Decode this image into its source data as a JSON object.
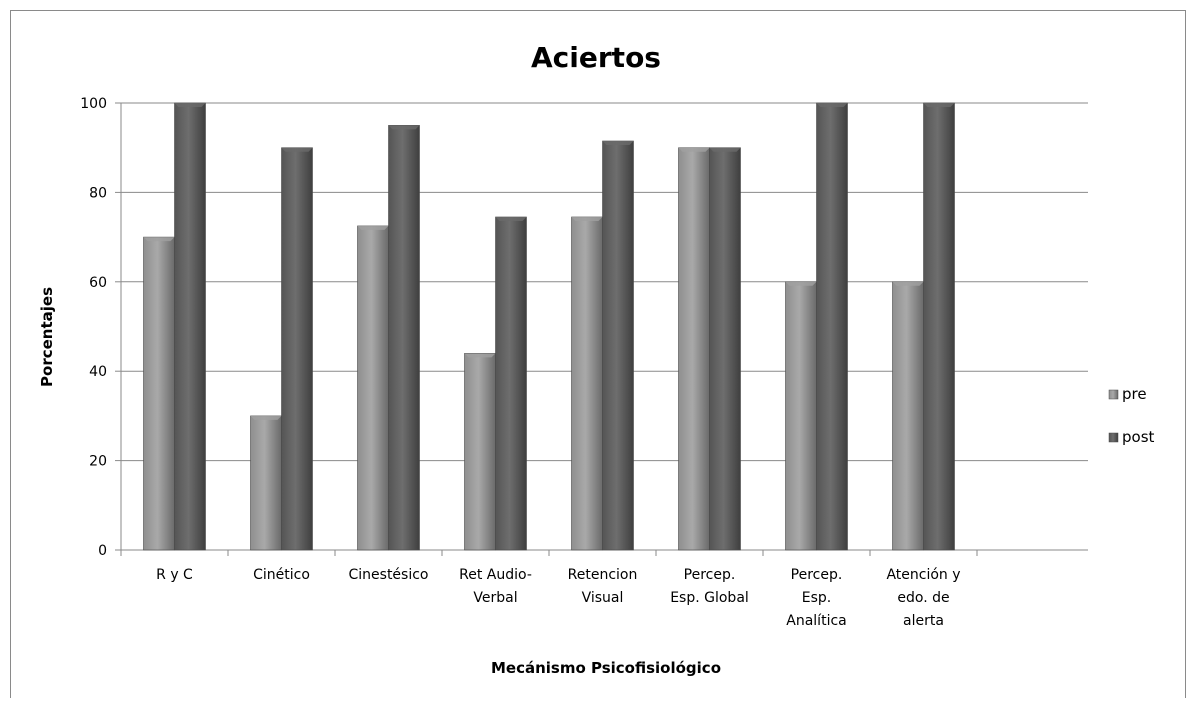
{
  "chart_data": {
    "type": "bar",
    "title": "Aciertos",
    "xlabel": "Mecánismo Psicofisiológico",
    "ylabel": "Porcentajes",
    "ylim": [
      0,
      100
    ],
    "yticks": [
      0,
      20,
      40,
      60,
      80,
      100
    ],
    "categories": [
      [
        "R y C"
      ],
      [
        "Cinético"
      ],
      [
        "Cinestésico"
      ],
      [
        "Ret Audio-",
        "Verbal"
      ],
      [
        "Retencion",
        "Visual"
      ],
      [
        "Percep.",
        "Esp. Global"
      ],
      [
        "Percep.",
        "Esp.",
        "Analítica"
      ],
      [
        "Atención y",
        "edo. de",
        "alerta"
      ]
    ],
    "series": [
      {
        "name": "pre",
        "values": [
          70,
          30,
          72.5,
          44,
          74.5,
          90,
          60,
          60
        ],
        "color": "#7b7b7b"
      },
      {
        "name": "post",
        "values": [
          100,
          90,
          95,
          74.5,
          91.5,
          90,
          100,
          100
        ],
        "color": "#555555"
      }
    ],
    "grid": true,
    "legend_position": "right"
  }
}
